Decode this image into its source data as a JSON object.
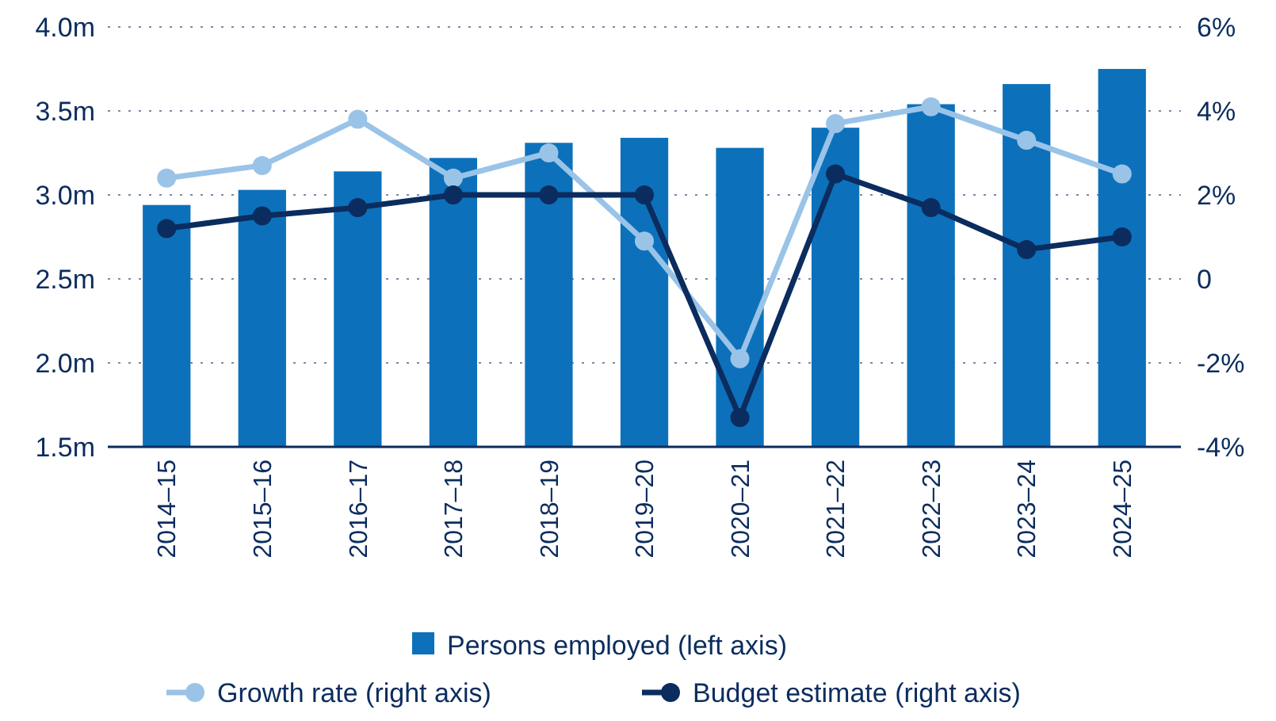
{
  "chart_data": {
    "type": "bar",
    "categories": [
      "2014–15",
      "2015–16",
      "2016–17",
      "2017–18",
      "2018–19",
      "2019–20",
      "2020–21",
      "2021–22",
      "2022–23",
      "2023–24",
      "2024–25"
    ],
    "series": [
      {
        "name": "Persons employed (left axis)",
        "color": "#0c71ba",
        "values": [
          2.94,
          3.03,
          3.14,
          3.22,
          3.31,
          3.34,
          3.28,
          3.4,
          3.54,
          3.66,
          3.75
        ]
      },
      {
        "name": "Growth rate (right axis)",
        "type": "line",
        "axis": "y2",
        "color": "#9ac3e8",
        "values": [
          2.4,
          2.7,
          3.8,
          2.4,
          3.0,
          0.9,
          -1.9,
          3.7,
          4.1,
          3.3,
          2.5
        ]
      },
      {
        "name": "Budget estimate (right axis)",
        "type": "line",
        "axis": "y2",
        "color": "#0b2c5e",
        "values": [
          1.2,
          1.5,
          1.7,
          2.0,
          2.0,
          2.0,
          -3.3,
          2.5,
          1.7,
          0.7,
          1.0
        ]
      }
    ],
    "ylim": [
      1.5,
      4.0
    ],
    "yticks": [
      {
        "value": 1.5,
        "label": "1.5m"
      },
      {
        "value": 2.0,
        "label": "2.0m"
      },
      {
        "value": 2.5,
        "label": "2.5m"
      },
      {
        "value": 3.0,
        "label": "3.0m"
      },
      {
        "value": 3.5,
        "label": "3.5m"
      },
      {
        "value": 4.0,
        "label": "4.0m"
      }
    ],
    "y2lim": [
      -4,
      6
    ],
    "y2ticks": [
      {
        "value": -4,
        "label": "-4%"
      },
      {
        "value": -2,
        "label": "-2%"
      },
      {
        "value": 0,
        "label": "0"
      },
      {
        "value": 2,
        "label": "2%"
      },
      {
        "value": 4,
        "label": "4%"
      },
      {
        "value": 6,
        "label": "6%"
      }
    ],
    "grid": "y",
    "legend": "bottom",
    "marker": "circle",
    "line_style": "solid"
  }
}
